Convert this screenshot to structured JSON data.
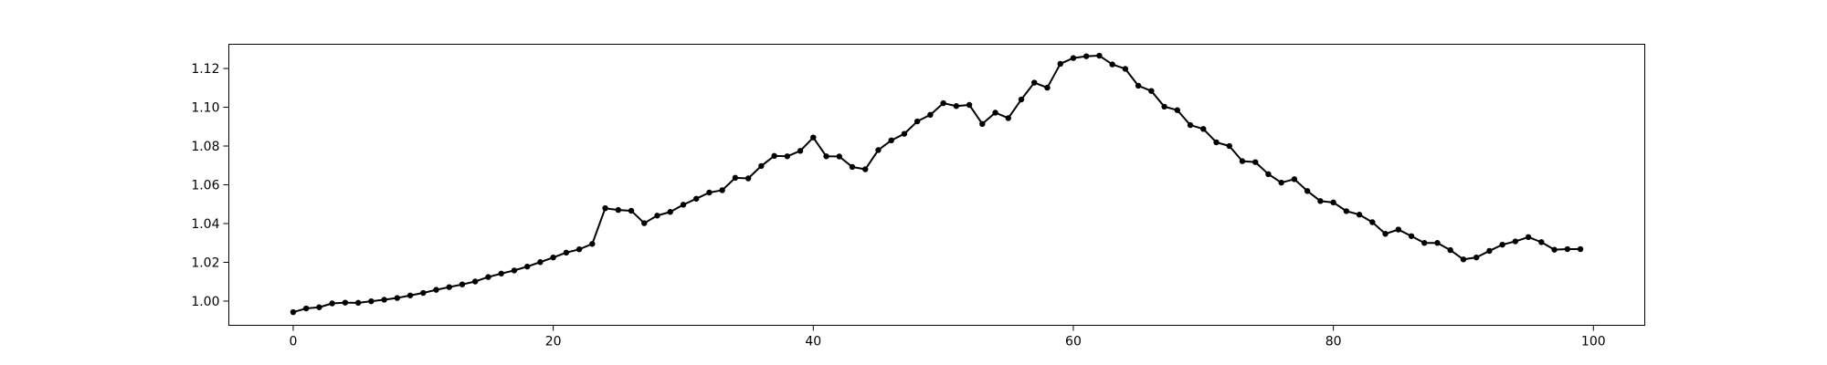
{
  "chart_data": {
    "type": "line",
    "title": "",
    "xlabel": "",
    "ylabel": "",
    "grid": false,
    "legend": "none",
    "xlim": [
      -4.95,
      103.95
    ],
    "ylim": [
      0.9875,
      1.1325
    ],
    "xticks": [
      0,
      20,
      40,
      60,
      80,
      100
    ],
    "xtick_labels": [
      "0",
      "20",
      "40",
      "60",
      "80",
      "100"
    ],
    "yticks": [
      1.0,
      1.02,
      1.04,
      1.06,
      1.08,
      1.1,
      1.12
    ],
    "ytick_labels": [
      "1.00",
      "1.02",
      "1.04",
      "1.06",
      "1.08",
      "1.10",
      "1.12"
    ],
    "series": [
      {
        "color": "#000000",
        "marker": "circle",
        "x": [
          0,
          1,
          2,
          3,
          4,
          5,
          6,
          7,
          8,
          9,
          10,
          11,
          12,
          13,
          14,
          15,
          16,
          17,
          18,
          19,
          20,
          21,
          22,
          23,
          24,
          25,
          26,
          27,
          28,
          29,
          30,
          31,
          32,
          33,
          34,
          35,
          36,
          37,
          38,
          39,
          40,
          41,
          42,
          43,
          44,
          45,
          46,
          47,
          48,
          49,
          50,
          51,
          52,
          53,
          54,
          55,
          56,
          57,
          58,
          59,
          60,
          61,
          62,
          63,
          64,
          65,
          66,
          67,
          68,
          69,
          70,
          71,
          72,
          73,
          74,
          75,
          76,
          77,
          78,
          79,
          80,
          81,
          82,
          83,
          84,
          85,
          86,
          87,
          88,
          89,
          90,
          91,
          92,
          93,
          94,
          95,
          96,
          97,
          98,
          99
        ],
        "y": [
          0.9943,
          0.9962,
          0.9968,
          0.9988,
          0.9992,
          0.9991,
          0.9999,
          1.0007,
          1.0016,
          1.0029,
          1.0042,
          1.0058,
          1.0072,
          1.0086,
          1.0101,
          1.0124,
          1.0142,
          1.0158,
          1.0178,
          1.0201,
          1.0225,
          1.025,
          1.0267,
          1.0295,
          1.0479,
          1.047,
          1.0466,
          1.0402,
          1.0441,
          1.046,
          1.0497,
          1.0528,
          1.056,
          1.0572,
          1.0636,
          1.0633,
          1.0697,
          1.0749,
          1.0747,
          1.0775,
          1.0844,
          1.0747,
          1.0746,
          1.0692,
          1.068,
          1.0779,
          1.0829,
          1.0863,
          1.0927,
          1.0961,
          1.1021,
          1.1006,
          1.1012,
          1.0914,
          1.0972,
          1.0944,
          1.104,
          1.1127,
          1.1101,
          1.1224,
          1.1254,
          1.1263,
          1.1266,
          1.1221,
          1.1198,
          1.1111,
          1.1084,
          1.1003,
          1.0985,
          1.0908,
          1.0888,
          1.0819,
          1.08,
          1.0722,
          1.0717,
          1.0655,
          1.0611,
          1.0629,
          1.0568,
          1.0516,
          1.0509,
          1.0464,
          1.0446,
          1.0407,
          1.0347,
          1.0369,
          1.0335,
          1.03,
          1.03,
          1.0263,
          1.0215,
          1.0225,
          1.0259,
          1.0291,
          1.0308,
          1.033,
          1.0304,
          1.0265,
          1.0268,
          1.0268
        ]
      }
    ]
  }
}
